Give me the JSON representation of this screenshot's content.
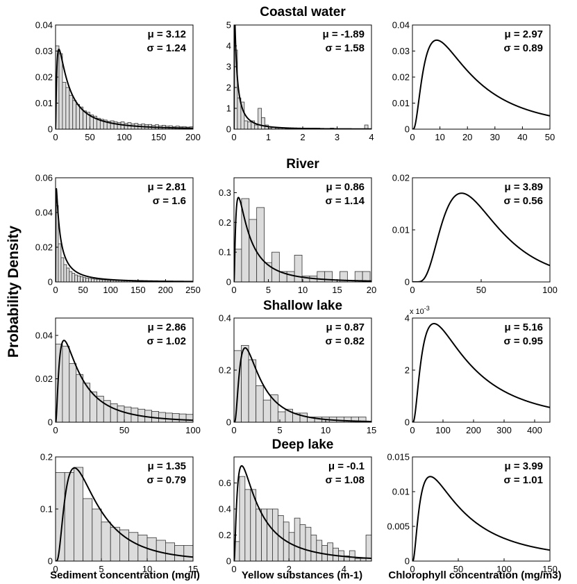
{
  "figure": {
    "ylabel": "Probability Density",
    "xlabels": [
      "Sediment concentration (mg/l)",
      "Yellow substances (m-1)",
      "Chlorophyll concentration (mg/m3)"
    ],
    "row_titles": [
      "Coastal water",
      "River",
      "Shallow lake",
      "Deep lake"
    ]
  },
  "chart_data": [
    {
      "type": "bar",
      "row": 0,
      "col": 0,
      "row_title": "Coastal water",
      "xlim": [
        0,
        200
      ],
      "ylim": [
        0,
        0.04
      ],
      "xticks": [
        0,
        50,
        100,
        150,
        200
      ],
      "yticks": [
        0,
        0.01,
        0.02,
        0.03,
        0.04
      ],
      "xtick_labels": [
        "0",
        "50",
        "100",
        "150",
        "200"
      ],
      "ytick_labels": [
        "0",
        "0.01",
        "0.02",
        "0.03",
        "0.04"
      ],
      "stats": {
        "mu_label": "μ = 3.12",
        "sigma_label": "σ = 1.24",
        "mu": 3.12,
        "sigma": 1.24
      },
      "bin_width": 5,
      "hist_values": [
        0.032,
        0.029,
        0.018,
        0.016,
        0.013,
        0.011,
        0.0095,
        0.0085,
        0.007,
        0.0065,
        0.0055,
        0.005,
        0.0042,
        0.0038,
        0.0035,
        0.003,
        0.0032,
        0.0028,
        0.0025,
        0.0028,
        0.0022,
        0.0025,
        0.002,
        0.0022,
        0.0018,
        0.002,
        0.0017,
        0.0018,
        0.0015,
        0.0017,
        0.0013,
        0.0015,
        0.0012,
        0.0013,
        0.001,
        0.0012,
        0.0009,
        0.001,
        0.0008,
        0.0009
      ],
      "curve": "lognormal",
      "yexp": ""
    },
    {
      "type": "bar",
      "row": 0,
      "col": 1,
      "row_title": "Coastal water",
      "xlim": [
        0,
        4
      ],
      "ylim": [
        0,
        5
      ],
      "xticks": [
        0,
        1,
        2,
        3,
        4
      ],
      "yticks": [
        0,
        1,
        2,
        3,
        4,
        5
      ],
      "xtick_labels": [
        "0",
        "1",
        "2",
        "3",
        "4"
      ],
      "ytick_labels": [
        "0",
        "1",
        "2",
        "3",
        "4",
        "5"
      ],
      "stats": {
        "mu_label": "μ = -1.89",
        "sigma_label": "σ = 1.58",
        "mu": -1.89,
        "sigma": 1.58
      },
      "bin_width": 0.1,
      "hist_values": [
        3.8,
        1.5,
        1.3,
        0.4,
        0.35,
        0.4,
        0.2,
        1.0,
        0.55,
        0.2,
        0.05,
        0.1,
        0.05,
        0.05,
        0.05,
        0.02,
        0.02,
        0.05,
        0.02,
        0.02,
        0.05,
        0.05,
        0.05,
        0.05,
        0.05,
        0.0,
        0.0,
        0.0,
        0.05,
        0.0,
        0.0,
        0.0,
        0.0,
        0.0,
        0.0,
        0.0,
        0.0,
        0.0,
        0.2,
        0.0
      ],
      "curve": "lognormal",
      "yexp": ""
    },
    {
      "type": "line",
      "row": 0,
      "col": 2,
      "row_title": "Coastal water",
      "xlim": [
        0,
        50
      ],
      "ylim": [
        0,
        0.04
      ],
      "xticks": [
        0,
        10,
        20,
        30,
        40,
        50
      ],
      "yticks": [
        0,
        0.01,
        0.02,
        0.03,
        0.04
      ],
      "xtick_labels": [
        "0",
        "10",
        "20",
        "30",
        "40",
        "50"
      ],
      "ytick_labels": [
        "0",
        "0.01",
        "0.02",
        "0.03",
        "0.04"
      ],
      "stats": {
        "mu_label": "μ = 2.97",
        "sigma_label": "σ = 0.89",
        "mu": 2.97,
        "sigma": 0.89
      },
      "bin_width": 0,
      "hist_values": [],
      "curve": "lognormal",
      "yexp": ""
    },
    {
      "type": "bar",
      "row": 1,
      "col": 0,
      "row_title": "River",
      "xlim": [
        0,
        250
      ],
      "ylim": [
        0,
        0.06
      ],
      "xticks": [
        0,
        50,
        100,
        150,
        200,
        250
      ],
      "yticks": [
        0,
        0.02,
        0.04,
        0.06
      ],
      "xtick_labels": [
        "0",
        "50",
        "100",
        "150",
        "200",
        "250"
      ],
      "ytick_labels": [
        "0",
        "0.02",
        "0.04",
        "0.06"
      ],
      "stats": {
        "mu_label": "μ = 2.81",
        "sigma_label": "σ = 1.6",
        "mu": 2.81,
        "sigma": 1.6
      },
      "bin_width": 5,
      "hist_values": [
        0.044,
        0.022,
        0.014,
        0.01,
        0.008,
        0.006,
        0.005,
        0.004,
        0.0035,
        0.003,
        0.0025,
        0.0022,
        0.002,
        0.0018,
        0.0016,
        0.0015,
        0.0013,
        0.0012,
        0.0011,
        0.001,
        0.001,
        0.0009,
        0.0008,
        0.0008,
        0.0007,
        0.0007,
        0.0006,
        0.0006,
        0.0005,
        0.0005,
        0.0005,
        0.0004,
        0.0004,
        0.0004,
        0.0004,
        0.0003,
        0.0003,
        0.0003,
        0.0003,
        0.0003,
        0.0003,
        0.0003,
        0.0002,
        0.0002,
        0.0002,
        0.0002,
        0.0002,
        0.0002,
        0.0002,
        0.0002
      ],
      "curve": "lognormal",
      "yexp": ""
    },
    {
      "type": "bar",
      "row": 1,
      "col": 1,
      "row_title": "River",
      "xlim": [
        0,
        20
      ],
      "ylim": [
        0,
        0.35
      ],
      "xticks": [
        0,
        5,
        10,
        15,
        20
      ],
      "yticks": [
        0,
        0.1,
        0.2,
        0.3
      ],
      "xtick_labels": [
        "0",
        "5",
        "10",
        "15",
        "20"
      ],
      "ytick_labels": [
        "0",
        "0.1",
        "0.2",
        "0.3"
      ],
      "stats": {
        "mu_label": "μ = 0.86",
        "sigma_label": "σ = 1.14",
        "mu": 0.86,
        "sigma": 1.14
      },
      "bin_width": 1.1,
      "hist_values": [
        0.11,
        0.28,
        0.21,
        0.25,
        0.065,
        0.1,
        0.035,
        0.035,
        0.09,
        0.02,
        0.02,
        0.035,
        0.035,
        0.0,
        0.035,
        0.0,
        0.035,
        0.035
      ],
      "curve": "lognormal",
      "yexp": ""
    },
    {
      "type": "line",
      "row": 1,
      "col": 2,
      "row_title": "River",
      "xlim": [
        0,
        100
      ],
      "ylim": [
        0,
        0.02
      ],
      "xticks": [
        0,
        50,
        100
      ],
      "yticks": [
        0,
        0.01,
        0.02
      ],
      "xtick_labels": [
        "0",
        "50",
        "100"
      ],
      "ytick_labels": [
        "0",
        "0.01",
        "0.02"
      ],
      "stats": {
        "mu_label": "μ = 3.89",
        "sigma_label": "σ = 0.56",
        "mu": 3.89,
        "sigma": 0.56
      },
      "bin_width": 0,
      "hist_values": [],
      "curve": "lognormal",
      "yexp": ""
    },
    {
      "type": "bar",
      "row": 2,
      "col": 0,
      "row_title": "Shallow lake",
      "xlim": [
        0,
        100
      ],
      "ylim": [
        0,
        0.048
      ],
      "xticks": [
        0,
        50,
        100
      ],
      "yticks": [
        0,
        0.02,
        0.04
      ],
      "xtick_labels": [
        "0",
        "50",
        "100"
      ],
      "ytick_labels": [
        "0",
        "0.02",
        "0.04"
      ],
      "stats": {
        "mu_label": "μ = 2.86",
        "sigma_label": "σ = 1.02",
        "mu": 2.86,
        "sigma": 1.02
      },
      "bin_width": 5,
      "hist_values": [
        0.036,
        0.035,
        0.027,
        0.022,
        0.018,
        0.014,
        0.012,
        0.01,
        0.0085,
        0.0075,
        0.007,
        0.0065,
        0.006,
        0.0055,
        0.005,
        0.0045,
        0.0042,
        0.004,
        0.0038,
        0.0036
      ],
      "curve": "lognormal",
      "yexp": ""
    },
    {
      "type": "bar",
      "row": 2,
      "col": 1,
      "row_title": "Shallow lake",
      "xlim": [
        0,
        15
      ],
      "ylim": [
        0,
        0.4
      ],
      "xticks": [
        0,
        5,
        10,
        15
      ],
      "yticks": [
        0,
        0.2,
        0.4
      ],
      "xtick_labels": [
        "0",
        "5",
        "10",
        "15"
      ],
      "ytick_labels": [
        "0",
        "0.2",
        "0.4"
      ],
      "stats": {
        "mu_label": "μ = 0.87",
        "sigma_label": "σ = 0.82",
        "mu": 0.87,
        "sigma": 0.82
      },
      "bin_width": 0.8,
      "hist_values": [
        0.275,
        0.295,
        0.24,
        0.14,
        0.085,
        0.105,
        0.04,
        0.05,
        0.035,
        0.035,
        0.02,
        0.02,
        0.02,
        0.02,
        0.02,
        0.02,
        0.02,
        0.02
      ],
      "curve": "lognormal",
      "yexp": ""
    },
    {
      "type": "line",
      "row": 2,
      "col": 2,
      "row_title": "Shallow lake",
      "xlim": [
        0,
        450
      ],
      "ylim": [
        0,
        0.004
      ],
      "xticks": [
        0,
        100,
        200,
        300,
        400
      ],
      "yticks": [
        0,
        0.002,
        0.004
      ],
      "xtick_labels": [
        "0",
        "100",
        "200",
        "300",
        "400"
      ],
      "ytick_labels": [
        "0",
        "2",
        "4"
      ],
      "stats": {
        "mu_label": "μ = 5.16",
        "sigma_label": "σ = 0.95",
        "mu": 5.16,
        "sigma": 0.95
      },
      "bin_width": 0,
      "hist_values": [],
      "curve": "lognormal",
      "yexp": "x 10"
    },
    {
      "type": "bar",
      "row": 3,
      "col": 0,
      "row_title": "Deep lake",
      "xlim": [
        0,
        15
      ],
      "ylim": [
        0,
        0.2
      ],
      "xticks": [
        0,
        5,
        10,
        15
      ],
      "yticks": [
        0,
        0.1,
        0.2
      ],
      "xtick_labels": [
        "0",
        "5",
        "10",
        "15"
      ],
      "ytick_labels": [
        "0",
        "0.1",
        "0.2"
      ],
      "stats": {
        "mu_label": "μ = 1.35",
        "sigma_label": "σ = 0.79",
        "mu": 1.35,
        "sigma": 0.79
      },
      "bin_width": 1,
      "hist_values": [
        0.17,
        0.17,
        0.18,
        0.12,
        0.1,
        0.075,
        0.065,
        0.06,
        0.055,
        0.05,
        0.045,
        0.04,
        0.035,
        0.03,
        0.03
      ],
      "curve": "lognormal",
      "yexp": ""
    },
    {
      "type": "bar",
      "row": 3,
      "col": 1,
      "row_title": "Deep lake",
      "xlim": [
        0,
        5
      ],
      "ylim": [
        0,
        0.8
      ],
      "xticks": [
        0,
        2,
        4
      ],
      "yticks": [
        0,
        0.2,
        0.4,
        0.6
      ],
      "xtick_labels": [
        "0",
        "2",
        "4"
      ],
      "ytick_labels": [
        "0",
        "0.2",
        "0.4",
        "0.6"
      ],
      "stats": {
        "mu_label": "μ = -0.1",
        "sigma_label": "σ = 1.08",
        "mu": -0.1,
        "sigma": 1.08
      },
      "bin_width": 0.2,
      "hist_values": [
        0.15,
        0.65,
        0.55,
        0.55,
        0.4,
        0.4,
        0.4,
        0.4,
        0.35,
        0.3,
        0.22,
        0.33,
        0.28,
        0.26,
        0.2,
        0.16,
        0.12,
        0.14,
        0.1,
        0.08,
        0.04,
        0.08,
        0.02,
        0.02,
        0.2
      ],
      "curve": "lognormal",
      "yexp": ""
    },
    {
      "type": "line",
      "row": 3,
      "col": 2,
      "row_title": "Deep lake",
      "xlim": [
        0,
        150
      ],
      "ylim": [
        0,
        0.015
      ],
      "xticks": [
        0,
        50,
        100,
        150
      ],
      "yticks": [
        0,
        0.005,
        0.01,
        0.015
      ],
      "xtick_labels": [
        "0",
        "50",
        "100",
        "150"
      ],
      "ytick_labels": [
        "0",
        "0.005",
        "0.01",
        "0.015"
      ],
      "stats": {
        "mu_label": "μ = 3.99",
        "sigma_label": "σ = 1.01",
        "mu": 3.99,
        "sigma": 1.01
      },
      "bin_width": 0,
      "hist_values": [],
      "curve": "lognormal",
      "yexp": ""
    }
  ]
}
